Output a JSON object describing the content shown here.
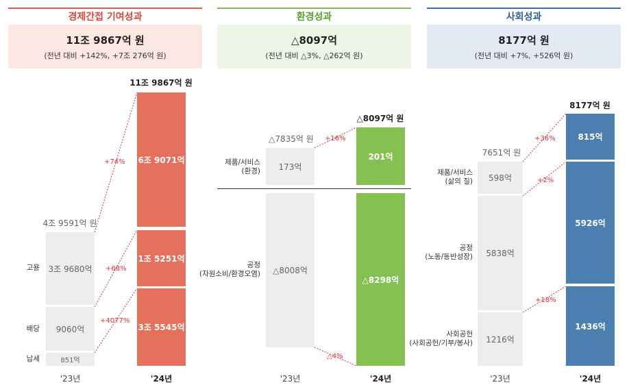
{
  "colors": {
    "econ_accent": "#e05a4a",
    "econ_bg": "#fce8e3",
    "econ_bar": "#e5705c",
    "env_accent": "#7dbb4a",
    "env_bg": "#eef5e6",
    "env_bar": "#84c052",
    "soc_accent": "#3a6ea8",
    "soc_bg": "#e3eaf4",
    "soc_bar": "#4a7fb0",
    "prev_bar": "#ededed",
    "change": "#e8303a"
  },
  "panels": {
    "economic": {
      "title": "경제간접 기여성과",
      "summary_main": "11조 9867억 원",
      "summary_sub": "(전년 대비 +142%, +7조 276억 원)",
      "total_prev": "4조 9591억 원",
      "total_cur": "11조 9867억 원",
      "categories": [
        "고용",
        "배당",
        "납세"
      ],
      "prev_labels": [
        "3조 9680억",
        "9060억",
        "851억"
      ],
      "cur_labels": [
        "6조 9071억",
        "1조 5251억",
        "3조 5545억"
      ],
      "changes": [
        "+74%",
        "+68%",
        "+4077%"
      ]
    },
    "environmental": {
      "title": "환경성과",
      "summary_main": "△8097억",
      "summary_sub": "(전년 대비 △3%, △262억 원)",
      "total_prev": "△7835억 원",
      "total_cur": "△8097억 원",
      "categories": [
        "제품/서비스\n(환경)",
        "공정\n(자원소비/환경오염)"
      ],
      "prev_labels": [
        "173억",
        "△8008억"
      ],
      "cur_labels": [
        "201억",
        "△8298억"
      ],
      "changes": [
        "+16%",
        "△4%"
      ]
    },
    "social": {
      "title": "사회성과",
      "summary_main": "8177억 원",
      "summary_sub": "(전년 대비 +7%, +526억 원)",
      "total_prev": "7651억 원",
      "total_cur": "8177억 원",
      "categories": [
        "제품/서비스\n(삶의 질)",
        "공정\n(노동/동반성장)",
        "사회공헌\n(사회공헌/기부/봉사)"
      ],
      "prev_labels": [
        "598억",
        "5838억",
        "1216억"
      ],
      "cur_labels": [
        "815억",
        "5926억",
        "1436억"
      ],
      "changes": [
        "+36%",
        "+2%",
        "+18%"
      ]
    }
  },
  "years": {
    "prev": "'23년",
    "cur": "'24년"
  },
  "chart_data": [
    {
      "type": "bar",
      "title": "경제간접 기여성과",
      "categories": [
        "고용",
        "배당",
        "납세"
      ],
      "unit": "억 원",
      "series": [
        {
          "name": "'23년",
          "values": [
            39680,
            9060,
            851
          ]
        },
        {
          "name": "'24년",
          "values": [
            69071,
            15251,
            35545
          ]
        }
      ],
      "totals": {
        "'23년": 49591,
        "'24년": 119867
      }
    },
    {
      "type": "bar",
      "title": "환경성과",
      "categories": [
        "제품/서비스 (환경)",
        "공정 (자원소비/환경오염)"
      ],
      "unit": "억 원",
      "series": [
        {
          "name": "'23년",
          "values": [
            173,
            -8008
          ]
        },
        {
          "name": "'24년",
          "values": [
            201,
            -8298
          ]
        }
      ],
      "totals": {
        "'23년": -7835,
        "'24년": -8097
      }
    },
    {
      "type": "bar",
      "title": "사회성과",
      "categories": [
        "제품/서비스 (삶의 질)",
        "공정 (노동/동반성장)",
        "사회공헌 (사회공헌/기부/봉사)"
      ],
      "unit": "억 원",
      "series": [
        {
          "name": "'23년",
          "values": [
            598,
            5838,
            1216
          ]
        },
        {
          "name": "'24년",
          "values": [
            815,
            5926,
            1436
          ]
        }
      ],
      "totals": {
        "'23년": 7651,
        "'24년": 8177
      }
    }
  ]
}
